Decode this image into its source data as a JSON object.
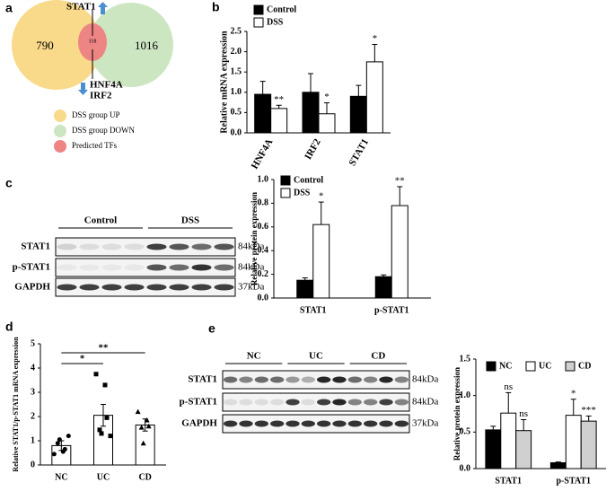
{
  "panel_labels": [
    "a",
    "b",
    "c",
    "d",
    "e"
  ],
  "venn": {
    "left_count": 790,
    "right_count": 1016,
    "overlap_count": 118,
    "up_genes": [
      "STAT1"
    ],
    "down_genes": [
      "HNF4A",
      "IRF2"
    ],
    "legend": [
      "DSS group UP",
      "DSS group DOWN",
      "Predicted TFs"
    ]
  },
  "blots": [
    {
      "groups": [
        "Control",
        "DSS"
      ],
      "rows": [
        {
          "protein": "STAT1",
          "size": "84kDa"
        },
        {
          "protein": "p-STAT1",
          "size": "84kDa"
        },
        {
          "protein": "GAPDH",
          "size": "37kDa"
        }
      ]
    },
    {
      "groups": [
        "NC",
        "UC",
        "CD"
      ],
      "rows": [
        {
          "protein": "STAT1",
          "size": "84kDa"
        },
        {
          "protein": "p-STAT1",
          "size": "84kDa"
        },
        {
          "protein": "GAPDH",
          "size": "37kDa"
        }
      ]
    }
  ],
  "chart_data": [
    {
      "type": "bar",
      "y_label": "Relative mRNA expression",
      "categories": [
        "HNF4A",
        "IRF2",
        "STAT1"
      ],
      "legend": "top-left",
      "series": [
        {
          "name": "Control",
          "color": "#000000",
          "values": [
            0.95,
            1.0,
            0.9
          ],
          "errors": [
            0.32,
            0.46,
            0.27
          ]
        },
        {
          "name": "DSS",
          "color": "#ffffff",
          "values": [
            0.6,
            0.47,
            1.75
          ],
          "errors": [
            0.08,
            0.27,
            0.43
          ],
          "annotations": [
            "**",
            "*",
            "*"
          ]
        }
      ],
      "ylim": [
        0,
        2.5
      ],
      "yticks": [
        {
          "value": 0,
          "label": "0.0"
        },
        0.5,
        {
          "value": 1,
          "label": "1.0"
        },
        1.5,
        {
          "value": 2,
          "label": "2.0"
        },
        2.5
      ]
    },
    {
      "type": "bar",
      "y_label": "Relative protein expression",
      "categories": [
        "STAT1",
        "p-STAT1"
      ],
      "legend": "top-left",
      "series": [
        {
          "name": "Control",
          "color": "#000000",
          "values": [
            0.15,
            0.18
          ],
          "errors": [
            0.02,
            0.015
          ]
        },
        {
          "name": "DSS",
          "color": "#ffffff",
          "values": [
            0.62,
            0.78
          ],
          "errors": [
            0.19,
            0.16
          ],
          "annotations": [
            "*",
            "**"
          ]
        }
      ],
      "ylim": [
        0,
        1
      ],
      "yticks": [
        {
          "value": 0,
          "label": "0.0"
        },
        0.2,
        0.4,
        0.6,
        0.8,
        {
          "value": 1,
          "label": "1.0"
        }
      ]
    },
    {
      "type": "dot",
      "y_label": "Relative STAT1/p-STAT1 mRNA expression",
      "categories": [
        "NC",
        "UC",
        "CD"
      ],
      "values": [
        0.8,
        2.05,
        1.65
      ],
      "errors": [
        0.2,
        0.45,
        0.25
      ],
      "color": "#ffffff",
      "markers": [
        "circle",
        "square",
        "triangle"
      ],
      "points": [
        [
          0.45,
          0.55,
          0.65,
          0.9,
          1.05,
          1.2
        ],
        [
          3.75,
          3.3,
          1.95,
          1.45,
          1.3,
          1.2
        ],
        [
          2.2,
          1.85,
          1.6,
          1.55,
          0.9
        ]
      ],
      "comparisons": [
        {
          "between": [
            "NC",
            "UC"
          ],
          "label": "*"
        },
        {
          "between": [
            "NC",
            "CD"
          ],
          "label": "**"
        }
      ],
      "ylim": [
        0,
        5
      ],
      "yticks": [
        0,
        1,
        2,
        3,
        4,
        5
      ]
    },
    {
      "type": "bar",
      "y_label": "Relative protein expression",
      "categories": [
        "STAT1",
        "p-STAT1"
      ],
      "legend": "top-left",
      "series": [
        {
          "name": "NC",
          "color": "#000000",
          "values": [
            0.53,
            0.08
          ],
          "errors": [
            0.05,
            0.01
          ]
        },
        {
          "name": "UC",
          "color": "#ffffff",
          "values": [
            0.76,
            0.73
          ],
          "errors": [
            0.28,
            0.22
          ],
          "annotations": [
            "ns",
            "*"
          ]
        },
        {
          "name": "CD",
          "color": "#d0d0d0",
          "values": [
            0.52,
            0.65
          ],
          "errors": [
            0.15,
            0.07
          ],
          "annotations": [
            "ns",
            "***"
          ]
        }
      ],
      "ylim": [
        0,
        1.5
      ],
      "yticks": [
        {
          "value": 0,
          "label": "0.0"
        },
        0.5,
        {
          "value": 1,
          "label": "1.0"
        },
        1.5
      ]
    }
  ]
}
